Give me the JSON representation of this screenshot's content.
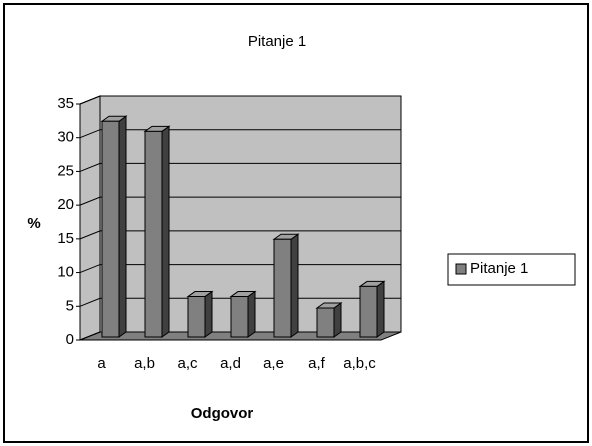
{
  "chart_data": {
    "type": "bar",
    "title": "Pitanje 1",
    "x_label": "Odgovor",
    "y_label": "%",
    "categories": [
      "a",
      "a,b",
      "a,c",
      "a,d",
      "a,e",
      "a,f",
      "a,b,c"
    ],
    "series": [
      {
        "name": "Pitanje 1",
        "color": "#808080",
        "values": [
          32,
          30.5,
          6,
          6,
          14.5,
          4.3,
          7.5
        ]
      }
    ],
    "ylim": [
      0,
      35
    ],
    "yticks": [
      0,
      5,
      10,
      15,
      20,
      25,
      30,
      35
    ],
    "grid": true,
    "legend": "right"
  }
}
